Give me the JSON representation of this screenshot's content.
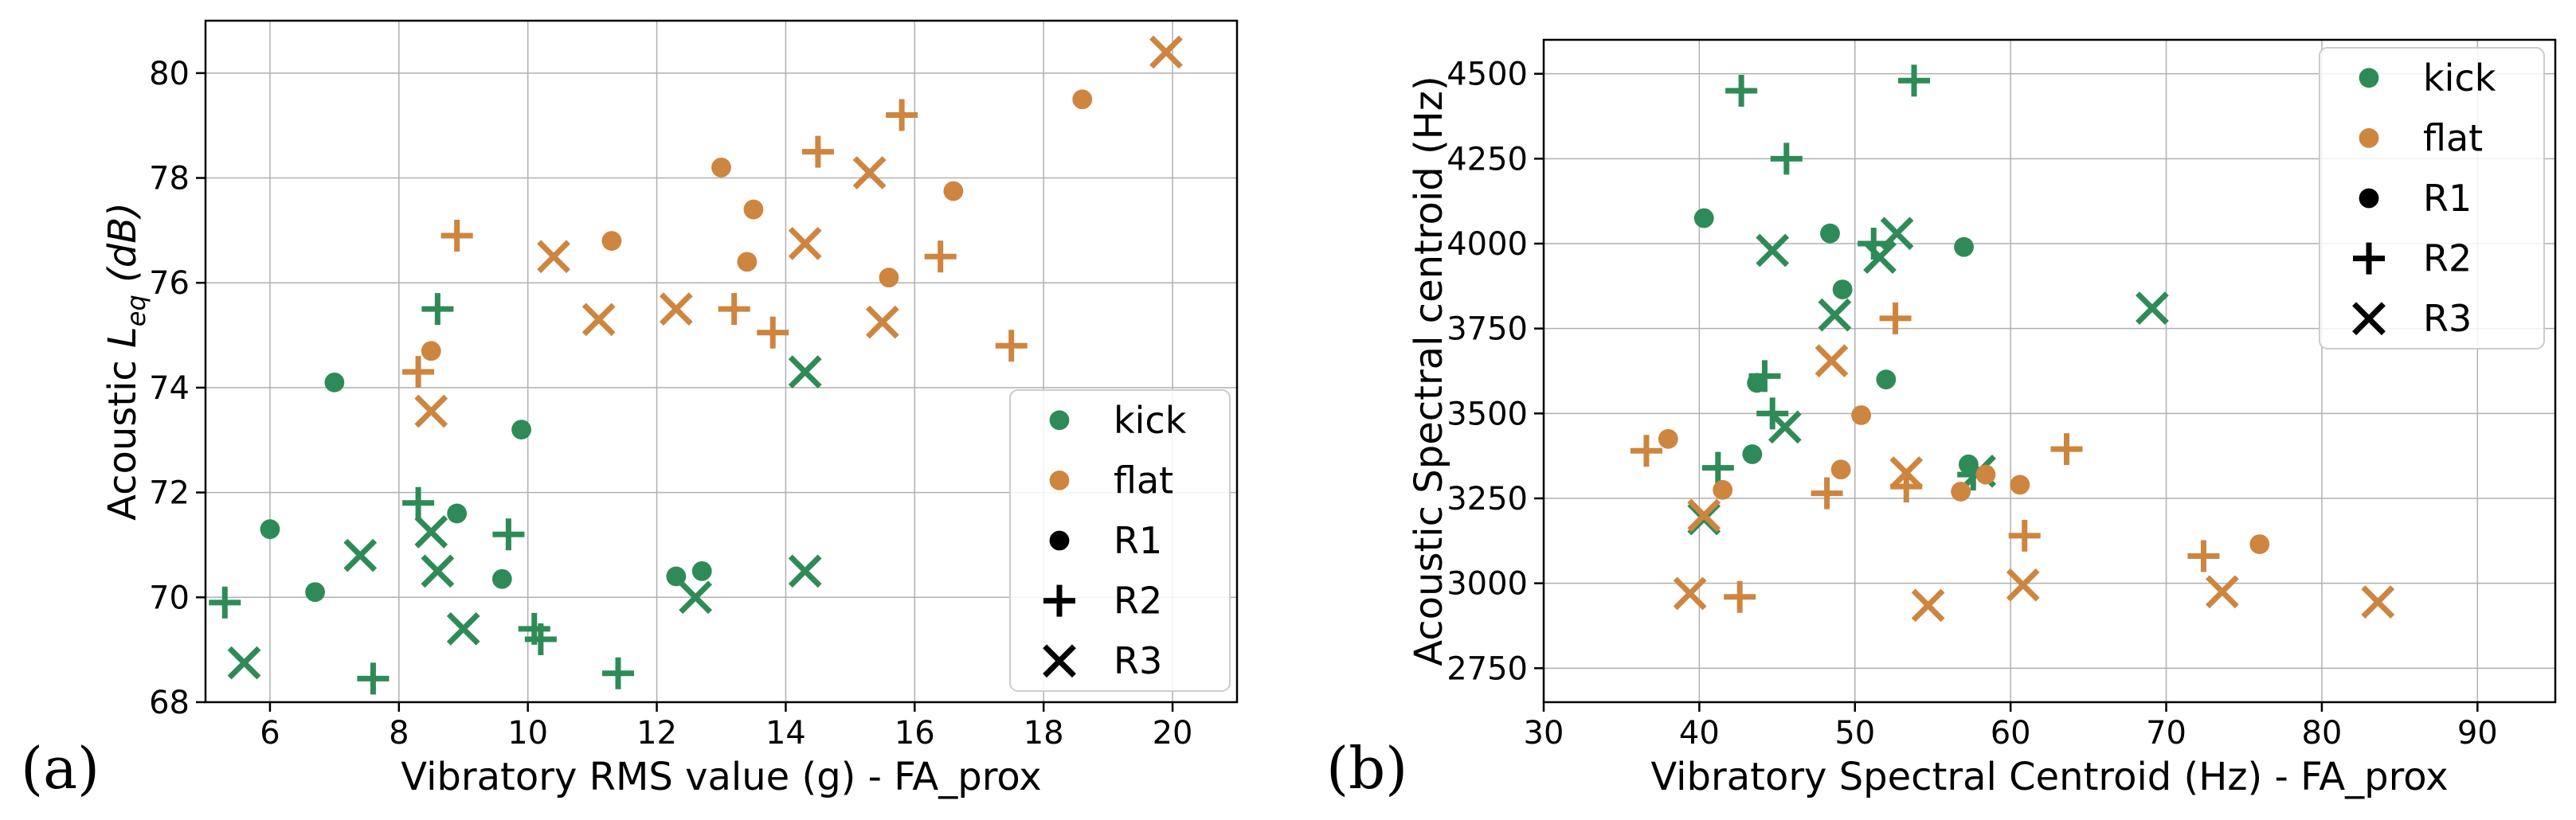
{
  "panels": {
    "a": {
      "label": "(a)"
    },
    "b": {
      "label": "(b)"
    }
  },
  "colors": {
    "kick": "#2e8b57",
    "flat": "#cd853f"
  },
  "chart_data": [
    {
      "type": "scatter",
      "xlabel": "Vibratory RMS value (g) - FA_prox",
      "ylabel_prefix": "Acoustic ",
      "ylabel_var": "L",
      "ylabel_sub": "eq",
      "ylabel_unit": "(dB)",
      "xlim": [
        5,
        21
      ],
      "ylim": [
        68,
        81
      ],
      "xticks": [
        6,
        8,
        10,
        12,
        14,
        16,
        18,
        20
      ],
      "yticks": [
        68,
        70,
        72,
        74,
        76,
        78,
        80
      ],
      "grid": true,
      "legend_position": "lower-right",
      "legend": [
        {
          "label": "kick",
          "kind": "color",
          "key": "kick"
        },
        {
          "label": "flat",
          "kind": "color",
          "key": "flat"
        },
        {
          "label": "R1",
          "kind": "marker",
          "marker": "circle"
        },
        {
          "label": "R2",
          "kind": "marker",
          "marker": "plus"
        },
        {
          "label": "R3",
          "kind": "marker",
          "marker": "x"
        }
      ],
      "series": [
        {
          "group": "kick",
          "marker": "circle",
          "points": [
            [
              6.0,
              71.3
            ],
            [
              6.7,
              70.1
            ],
            [
              7.0,
              74.1
            ],
            [
              8.9,
              71.6
            ],
            [
              9.6,
              70.35
            ],
            [
              9.9,
              73.2
            ],
            [
              12.3,
              70.4
            ],
            [
              12.7,
              70.5
            ]
          ]
        },
        {
          "group": "kick",
          "marker": "plus",
          "points": [
            [
              5.3,
              69.9
            ],
            [
              7.6,
              68.45
            ],
            [
              8.3,
              71.8
            ],
            [
              8.6,
              75.5
            ],
            [
              9.7,
              71.2
            ],
            [
              10.1,
              69.4
            ],
            [
              10.2,
              69.2
            ],
            [
              11.4,
              68.55
            ]
          ]
        },
        {
          "group": "kick",
          "marker": "x",
          "points": [
            [
              5.6,
              68.75
            ],
            [
              7.4,
              70.8
            ],
            [
              8.5,
              71.25
            ],
            [
              8.6,
              70.5
            ],
            [
              9.0,
              69.4
            ],
            [
              12.6,
              70.0
            ],
            [
              14.3,
              74.3
            ],
            [
              14.3,
              70.5
            ]
          ]
        },
        {
          "group": "flat",
          "marker": "circle",
          "points": [
            [
              8.5,
              74.7
            ],
            [
              11.3,
              76.8
            ],
            [
              13.0,
              78.2
            ],
            [
              13.4,
              76.4
            ],
            [
              13.5,
              77.4
            ],
            [
              15.6,
              76.1
            ],
            [
              16.6,
              77.75
            ],
            [
              18.6,
              79.5
            ]
          ]
        },
        {
          "group": "flat",
          "marker": "plus",
          "points": [
            [
              8.3,
              74.3
            ],
            [
              8.9,
              76.9
            ],
            [
              13.2,
              75.5
            ],
            [
              13.8,
              75.05
            ],
            [
              14.5,
              78.5
            ],
            [
              15.8,
              79.2
            ],
            [
              16.4,
              76.5
            ],
            [
              17.5,
              74.8
            ]
          ]
        },
        {
          "group": "flat",
          "marker": "x",
          "points": [
            [
              8.5,
              73.55
            ],
            [
              10.4,
              76.5
            ],
            [
              11.1,
              75.3
            ],
            [
              12.3,
              75.5
            ],
            [
              14.3,
              76.75
            ],
            [
              15.3,
              78.1
            ],
            [
              15.5,
              75.25
            ],
            [
              19.9,
              80.4
            ]
          ]
        }
      ]
    },
    {
      "type": "scatter",
      "xlabel": "Vibratory Spectral Centroid (Hz) - FA_prox",
      "ylabel": "Acoustic Spectral centroid (Hz)",
      "xlim": [
        30,
        95
      ],
      "ylim": [
        2650,
        4600
      ],
      "xticks": [
        30,
        40,
        50,
        60,
        70,
        80,
        90
      ],
      "yticks": [
        2750,
        3000,
        3250,
        3500,
        3750,
        4000,
        4250,
        4500
      ],
      "grid": true,
      "legend_position": "top-right",
      "legend": [
        {
          "label": "kick",
          "kind": "color",
          "key": "kick"
        },
        {
          "label": "flat",
          "kind": "color",
          "key": "flat"
        },
        {
          "label": "R1",
          "kind": "marker",
          "marker": "circle"
        },
        {
          "label": "R2",
          "kind": "marker",
          "marker": "plus"
        },
        {
          "label": "R3",
          "kind": "marker",
          "marker": "x"
        }
      ],
      "series": [
        {
          "group": "kick",
          "marker": "circle",
          "points": [
            [
              40.3,
              4075
            ],
            [
              43.4,
              3380
            ],
            [
              43.7,
              3590
            ],
            [
              48.4,
              4030
            ],
            [
              49.2,
              3865
            ],
            [
              52.0,
              3600
            ],
            [
              57.0,
              3990
            ],
            [
              57.3,
              3350
            ]
          ]
        },
        {
          "group": "kick",
          "marker": "plus",
          "points": [
            [
              41.2,
              3340
            ],
            [
              42.7,
              4450
            ],
            [
              44.2,
              3610
            ],
            [
              44.7,
              3500
            ],
            [
              45.6,
              4250
            ],
            [
              51.2,
              4000
            ],
            [
              53.8,
              4480
            ],
            [
              57.6,
              3320
            ]
          ]
        },
        {
          "group": "kick",
          "marker": "x",
          "points": [
            [
              40.3,
              3190
            ],
            [
              44.7,
              3980
            ],
            [
              45.5,
              3460
            ],
            [
              48.7,
              3790
            ],
            [
              51.6,
              3960
            ],
            [
              52.7,
              4030
            ],
            [
              58.0,
              3330
            ],
            [
              69.1,
              3810
            ]
          ]
        },
        {
          "group": "flat",
          "marker": "circle",
          "points": [
            [
              38.0,
              3425
            ],
            [
              41.5,
              3275
            ],
            [
              49.1,
              3335
            ],
            [
              50.4,
              3495
            ],
            [
              56.8,
              3270
            ],
            [
              58.4,
              3320
            ],
            [
              60.6,
              3290
            ],
            [
              76.0,
              3115
            ]
          ]
        },
        {
          "group": "flat",
          "marker": "plus",
          "points": [
            [
              36.6,
              3390
            ],
            [
              42.6,
              2960
            ],
            [
              48.2,
              3265
            ],
            [
              52.6,
              3780
            ],
            [
              53.3,
              3285
            ],
            [
              60.9,
              3140
            ],
            [
              63.6,
              3395
            ],
            [
              72.4,
              3080
            ]
          ]
        },
        {
          "group": "flat",
          "marker": "x",
          "points": [
            [
              39.4,
              2970
            ],
            [
              40.3,
              3200
            ],
            [
              48.5,
              3655
            ],
            [
              53.3,
              3325
            ],
            [
              54.7,
              2935
            ],
            [
              60.8,
              2995
            ],
            [
              73.6,
              2975
            ],
            [
              83.6,
              2945
            ]
          ]
        }
      ]
    }
  ]
}
